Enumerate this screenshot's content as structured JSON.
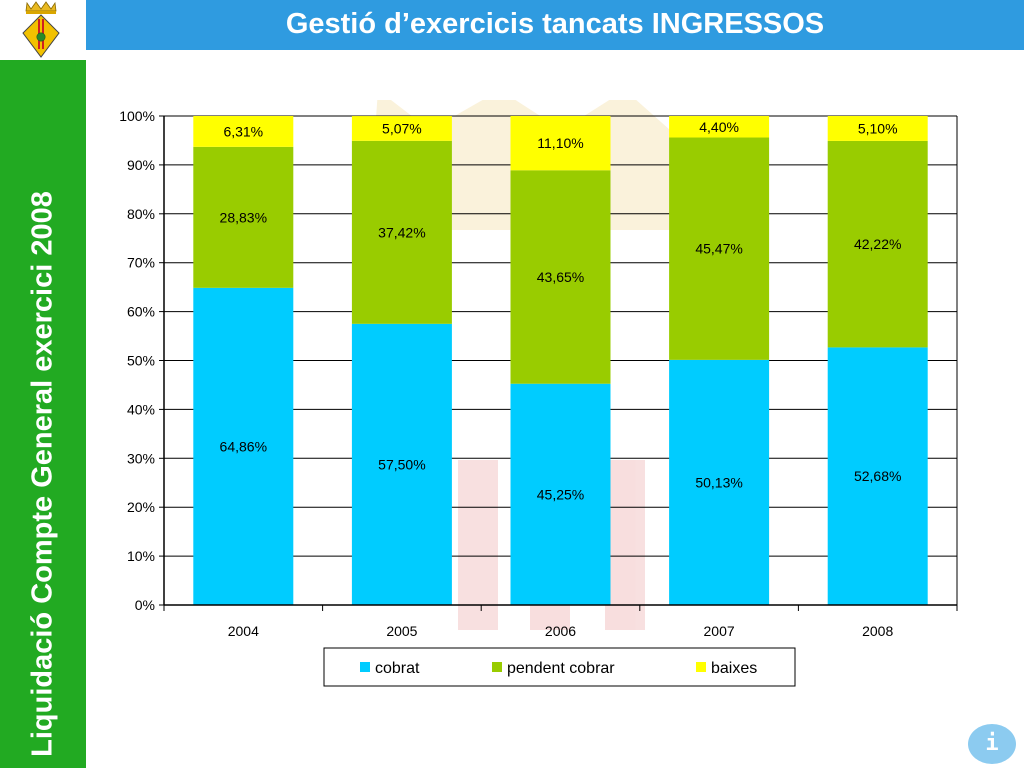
{
  "header": {
    "title": "Gestió d’exercicis tancats INGRESSOS"
  },
  "sidebar": {
    "title": "Liquidació Compte General exercici 2008"
  },
  "info_button": {
    "label": "i",
    "icon": "info-icon"
  },
  "logo": {
    "icon": "coat-of-arms-icon"
  },
  "colors": {
    "header": "#2f9be0",
    "sidebar": "#22aa22",
    "cobrat": "#00ccff",
    "pendent": "#99cc00",
    "baixes": "#ffff00"
  },
  "chart_data": {
    "type": "bar",
    "stacked": true,
    "title": "",
    "xlabel": "",
    "ylabel": "",
    "categories": [
      "2004",
      "2005",
      "2006",
      "2007",
      "2008"
    ],
    "ylim": [
      0,
      100
    ],
    "yticks": [
      "0%",
      "10%",
      "20%",
      "30%",
      "40%",
      "50%",
      "60%",
      "70%",
      "80%",
      "90%",
      "100%"
    ],
    "grid": true,
    "legend": "bottom",
    "series": [
      {
        "name": "cobrat",
        "color": "#00ccff",
        "values": [
          64.86,
          57.5,
          45.25,
          50.13,
          52.68
        ],
        "labels": [
          "64,86%",
          "57,50%",
          "45,25%",
          "50,13%",
          "52,68%"
        ]
      },
      {
        "name": "pendent cobrar",
        "color": "#99cc00",
        "values": [
          28.83,
          37.42,
          43.65,
          45.47,
          42.22
        ],
        "labels": [
          "28,83%",
          "37,42%",
          "43,65%",
          "45,47%",
          "42,22%"
        ]
      },
      {
        "name": "baixes",
        "color": "#ffff00",
        "values": [
          6.31,
          5.07,
          11.1,
          4.4,
          5.1
        ],
        "labels": [
          "6,31%",
          "5,07%",
          "11,10%",
          "4,40%",
          "5,10%"
        ]
      }
    ]
  }
}
